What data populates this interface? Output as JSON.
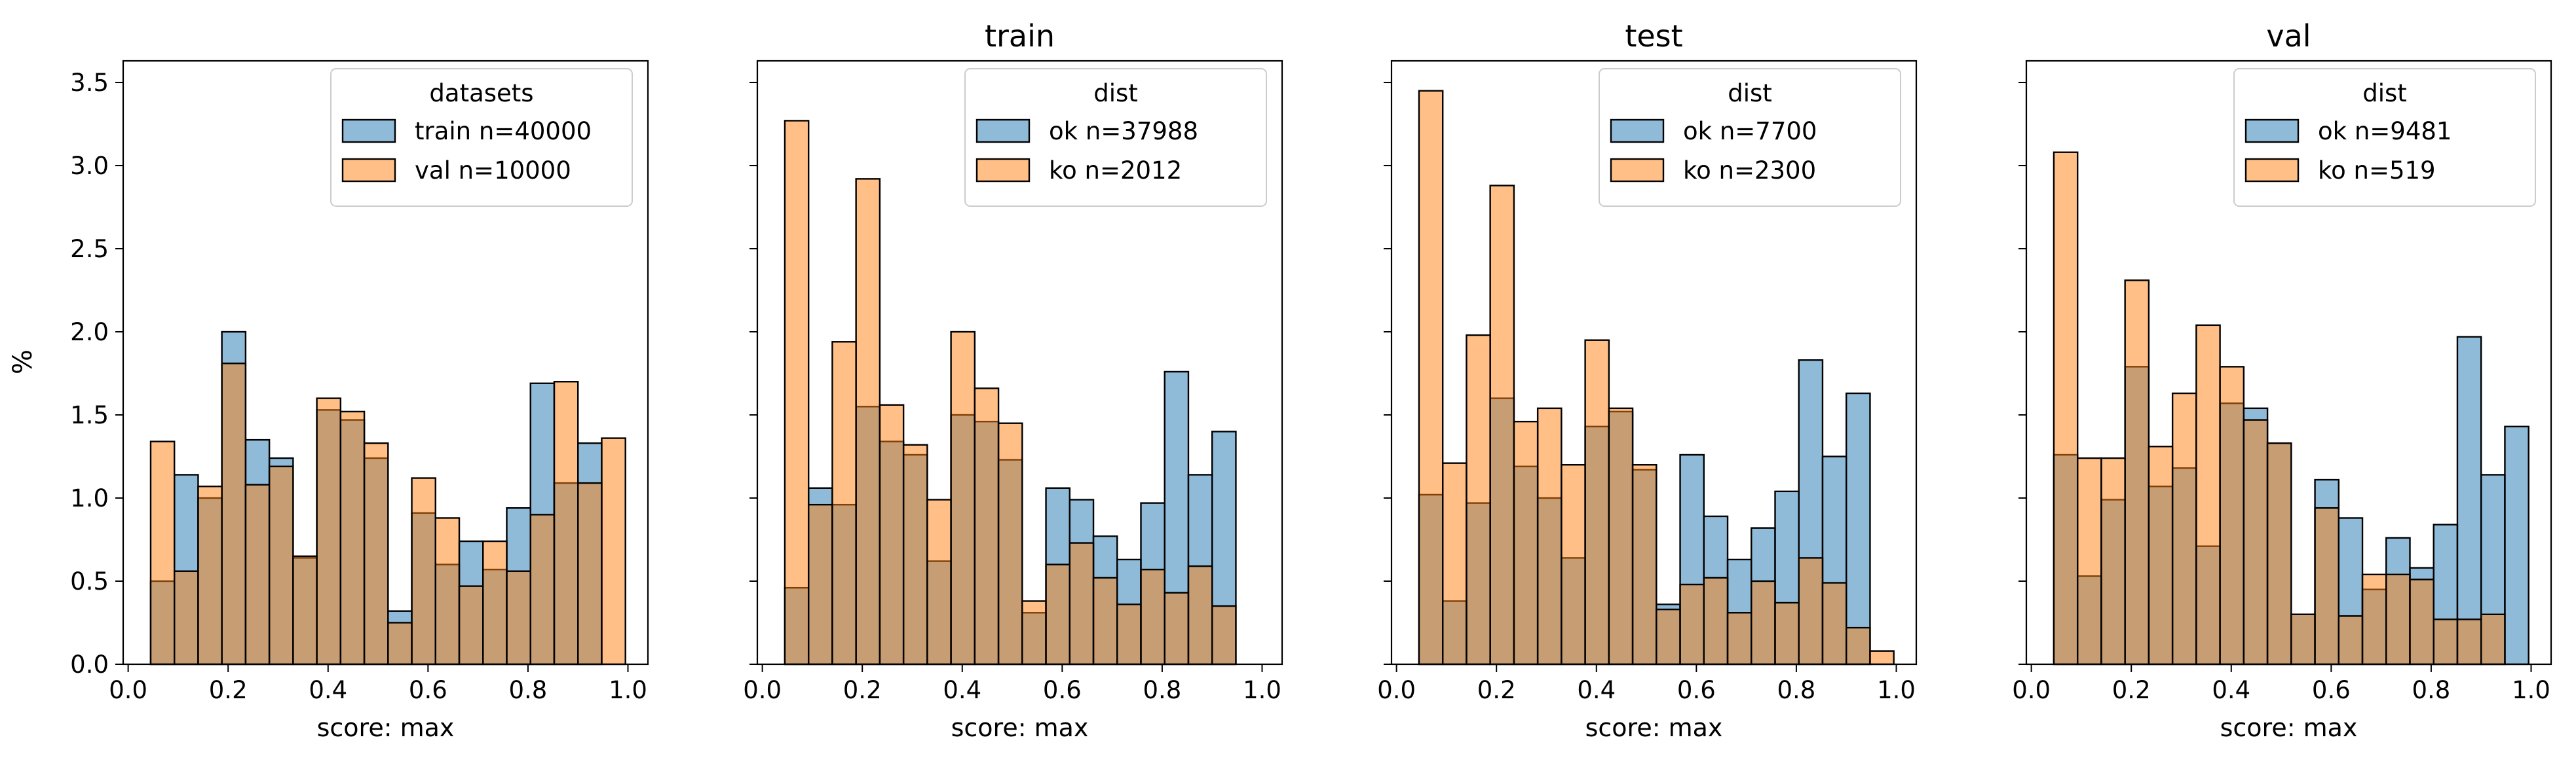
{
  "figure": {
    "ylabel": "%",
    "xlabel": "score: max"
  },
  "colors": {
    "blue": "#1f77b4",
    "orange": "#ff7f0e",
    "bar_alpha": 0.5,
    "edge": "#000000"
  },
  "chart_data": [
    {
      "type": "histogram",
      "title": "",
      "xlabel": "score: max",
      "ylabel": "%",
      "xlim": [
        -0.01,
        1.04
      ],
      "ylim": [
        0,
        3.63
      ],
      "xticks": [
        0.0,
        0.2,
        0.4,
        0.6,
        0.8,
        1.0
      ],
      "yticks": [
        0.0,
        0.5,
        1.0,
        1.5,
        2.0,
        2.5,
        3.0,
        3.5
      ],
      "legend": {
        "title": "datasets",
        "position": "top-right"
      },
      "series": [
        {
          "name": "train n=40000",
          "color": "blue",
          "bin_edges": [
            0.045,
            0.0925,
            0.14,
            0.1875,
            0.235,
            0.2825,
            0.33,
            0.3775,
            0.425,
            0.4725,
            0.52,
            0.5675,
            0.615,
            0.6625,
            0.71,
            0.7575,
            0.805,
            0.8525,
            0.9,
            0.9475,
            0.995
          ],
          "values": [
            0.5,
            1.14,
            1.0,
            2.0,
            1.35,
            1.24,
            0.64,
            1.53,
            1.47,
            1.24,
            0.32,
            0.91,
            0.6,
            0.74,
            0.57,
            0.94,
            1.69,
            1.09,
            1.33,
            0.0
          ]
        },
        {
          "name": "val n=10000",
          "color": "orange",
          "bin_edges": [
            0.045,
            0.0925,
            0.14,
            0.1875,
            0.235,
            0.2825,
            0.33,
            0.3775,
            0.425,
            0.4725,
            0.52,
            0.5675,
            0.615,
            0.6625,
            0.71,
            0.7575,
            0.805,
            0.8525,
            0.9,
            0.9475,
            0.995
          ],
          "values": [
            1.34,
            0.56,
            1.07,
            1.81,
            1.08,
            1.19,
            0.65,
            1.6,
            1.52,
            1.33,
            0.25,
            1.12,
            0.88,
            0.47,
            0.74,
            0.56,
            0.9,
            1.7,
            1.09,
            1.36
          ]
        }
      ]
    },
    {
      "type": "histogram",
      "title": "train",
      "xlabel": "score: max",
      "ylabel": "",
      "xlim": [
        -0.01,
        1.04
      ],
      "ylim": [
        0,
        3.63
      ],
      "xticks": [
        0.0,
        0.2,
        0.4,
        0.6,
        0.8,
        1.0
      ],
      "yticks": [
        0.0,
        0.5,
        1.0,
        1.5,
        2.0,
        2.5,
        3.0,
        3.5
      ],
      "legend": {
        "title": "dist",
        "position": "top-right"
      },
      "series": [
        {
          "name": "ok n=37988",
          "color": "blue",
          "bin_edges": [
            0.045,
            0.0925,
            0.14,
            0.1875,
            0.235,
            0.2825,
            0.33,
            0.3775,
            0.425,
            0.4725,
            0.52,
            0.5675,
            0.615,
            0.6625,
            0.71,
            0.7575,
            0.805,
            0.8525,
            0.9,
            0.9475,
            0.995
          ],
          "values": [
            0.46,
            1.06,
            0.96,
            1.55,
            1.34,
            1.26,
            0.62,
            1.5,
            1.46,
            1.23,
            0.31,
            1.06,
            0.99,
            0.77,
            0.63,
            0.97,
            1.76,
            1.14,
            1.4,
            0.0
          ]
        },
        {
          "name": "ko n=2012",
          "color": "orange",
          "bin_edges": [
            0.045,
            0.0925,
            0.14,
            0.1875,
            0.235,
            0.2825,
            0.33,
            0.3775,
            0.425,
            0.4725,
            0.52,
            0.5675,
            0.615,
            0.6625,
            0.71,
            0.7575,
            0.805,
            0.8525,
            0.9,
            0.9475,
            0.995
          ],
          "values": [
            3.27,
            0.96,
            1.94,
            2.92,
            1.56,
            1.32,
            0.99,
            2.0,
            1.66,
            1.45,
            0.38,
            0.6,
            0.73,
            0.52,
            0.36,
            0.57,
            0.43,
            0.59,
            0.35,
            0.0
          ]
        }
      ]
    },
    {
      "type": "histogram",
      "title": "test",
      "xlabel": "score: max",
      "ylabel": "",
      "xlim": [
        -0.01,
        1.04
      ],
      "ylim": [
        0,
        3.63
      ],
      "xticks": [
        0.0,
        0.2,
        0.4,
        0.6,
        0.8,
        1.0
      ],
      "yticks": [
        0.0,
        0.5,
        1.0,
        1.5,
        2.0,
        2.5,
        3.0,
        3.5
      ],
      "legend": {
        "title": "dist",
        "position": "top-right"
      },
      "series": [
        {
          "name": "ok n=7700",
          "color": "blue",
          "bin_edges": [
            0.045,
            0.0925,
            0.14,
            0.1875,
            0.235,
            0.2825,
            0.33,
            0.3775,
            0.425,
            0.4725,
            0.52,
            0.5675,
            0.615,
            0.6625,
            0.71,
            0.7575,
            0.805,
            0.8525,
            0.9,
            0.9475,
            0.995
          ],
          "values": [
            1.02,
            0.38,
            0.97,
            1.6,
            1.19,
            1.0,
            0.64,
            1.43,
            1.52,
            1.17,
            0.36,
            1.26,
            0.89,
            0.63,
            0.82,
            1.04,
            1.83,
            1.25,
            1.63,
            0.0
          ]
        },
        {
          "name": "ko n=2300",
          "color": "orange",
          "bin_edges": [
            0.045,
            0.0925,
            0.14,
            0.1875,
            0.235,
            0.2825,
            0.33,
            0.3775,
            0.425,
            0.4725,
            0.52,
            0.5675,
            0.615,
            0.6625,
            0.71,
            0.7575,
            0.805,
            0.8525,
            0.9,
            0.9475,
            0.995
          ],
          "values": [
            3.45,
            1.21,
            1.98,
            2.88,
            1.46,
            1.54,
            1.2,
            1.95,
            1.54,
            1.2,
            0.33,
            0.48,
            0.52,
            0.31,
            0.5,
            0.37,
            0.64,
            0.49,
            0.22,
            0.08
          ]
        }
      ]
    },
    {
      "type": "histogram",
      "title": "val",
      "xlabel": "score: max",
      "ylabel": "",
      "xlim": [
        -0.01,
        1.04
      ],
      "ylim": [
        0,
        3.63
      ],
      "xticks": [
        0.0,
        0.2,
        0.4,
        0.6,
        0.8,
        1.0
      ],
      "yticks": [
        0.0,
        0.5,
        1.0,
        1.5,
        2.0,
        2.5,
        3.0,
        3.5
      ],
      "legend": {
        "title": "dist",
        "position": "top-right"
      },
      "series": [
        {
          "name": "ok n=9481",
          "color": "blue",
          "bin_edges": [
            0.045,
            0.0925,
            0.14,
            0.1875,
            0.235,
            0.2825,
            0.33,
            0.3775,
            0.425,
            0.4725,
            0.52,
            0.5675,
            0.615,
            0.6625,
            0.71,
            0.7575,
            0.805,
            0.8525,
            0.9,
            0.9475,
            0.995
          ],
          "values": [
            1.26,
            0.53,
            0.99,
            1.79,
            1.07,
            1.18,
            0.71,
            1.57,
            1.54,
            1.33,
            0.3,
            1.11,
            0.88,
            0.45,
            0.76,
            0.58,
            0.84,
            1.97,
            1.14,
            1.43
          ]
        },
        {
          "name": "ko n=519",
          "color": "orange",
          "bin_edges": [
            0.045,
            0.0925,
            0.14,
            0.1875,
            0.235,
            0.2825,
            0.33,
            0.3775,
            0.425,
            0.4725,
            0.52,
            0.5675,
            0.615,
            0.6625,
            0.71,
            0.7575,
            0.805,
            0.8525,
            0.9,
            0.9475,
            0.995
          ],
          "values": [
            3.08,
            1.24,
            1.24,
            2.31,
            1.31,
            1.63,
            2.04,
            1.79,
            1.47,
            1.33,
            0.3,
            0.94,
            0.29,
            0.54,
            0.54,
            0.51,
            0.27,
            0.27,
            0.3,
            0.0
          ]
        }
      ]
    }
  ]
}
